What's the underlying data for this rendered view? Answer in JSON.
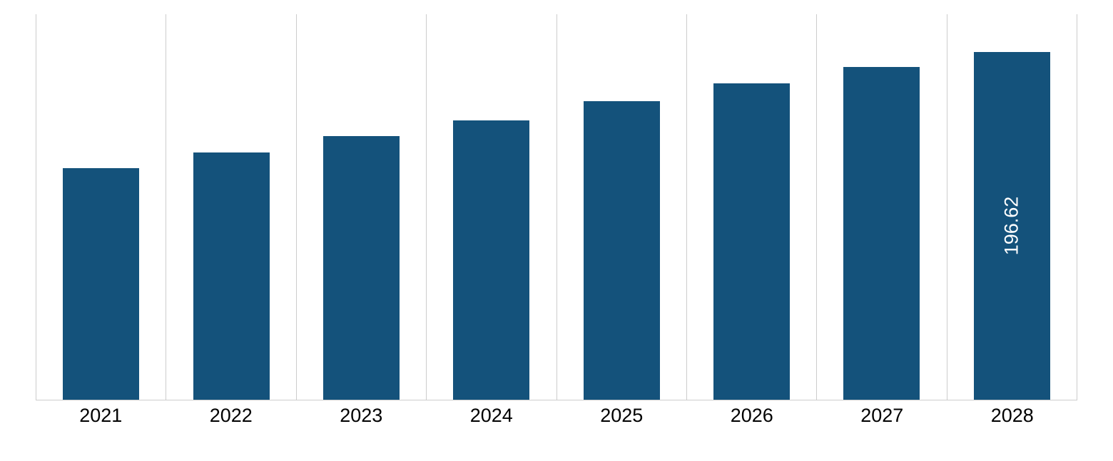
{
  "chart": {
    "type": "bar",
    "categories": [
      "2021",
      "2022",
      "2023",
      "2024",
      "2025",
      "2026",
      "2027",
      "2028"
    ],
    "values": [
      131,
      140,
      149,
      158,
      169,
      179,
      188,
      196.62
    ],
    "value_labels": [
      "",
      "",
      "",
      "",
      "",
      "",
      "",
      "196.62"
    ],
    "bar_color": "#14527b",
    "label_text_color": "#ffffff",
    "xaxis_text_color": "#000000",
    "grid_color": "#cccccc",
    "background_color": "#ffffff",
    "ylim_max": 218,
    "bar_width_ratio": 0.59,
    "label_fontsize": 27,
    "xaxis_fontsize": 27
  }
}
